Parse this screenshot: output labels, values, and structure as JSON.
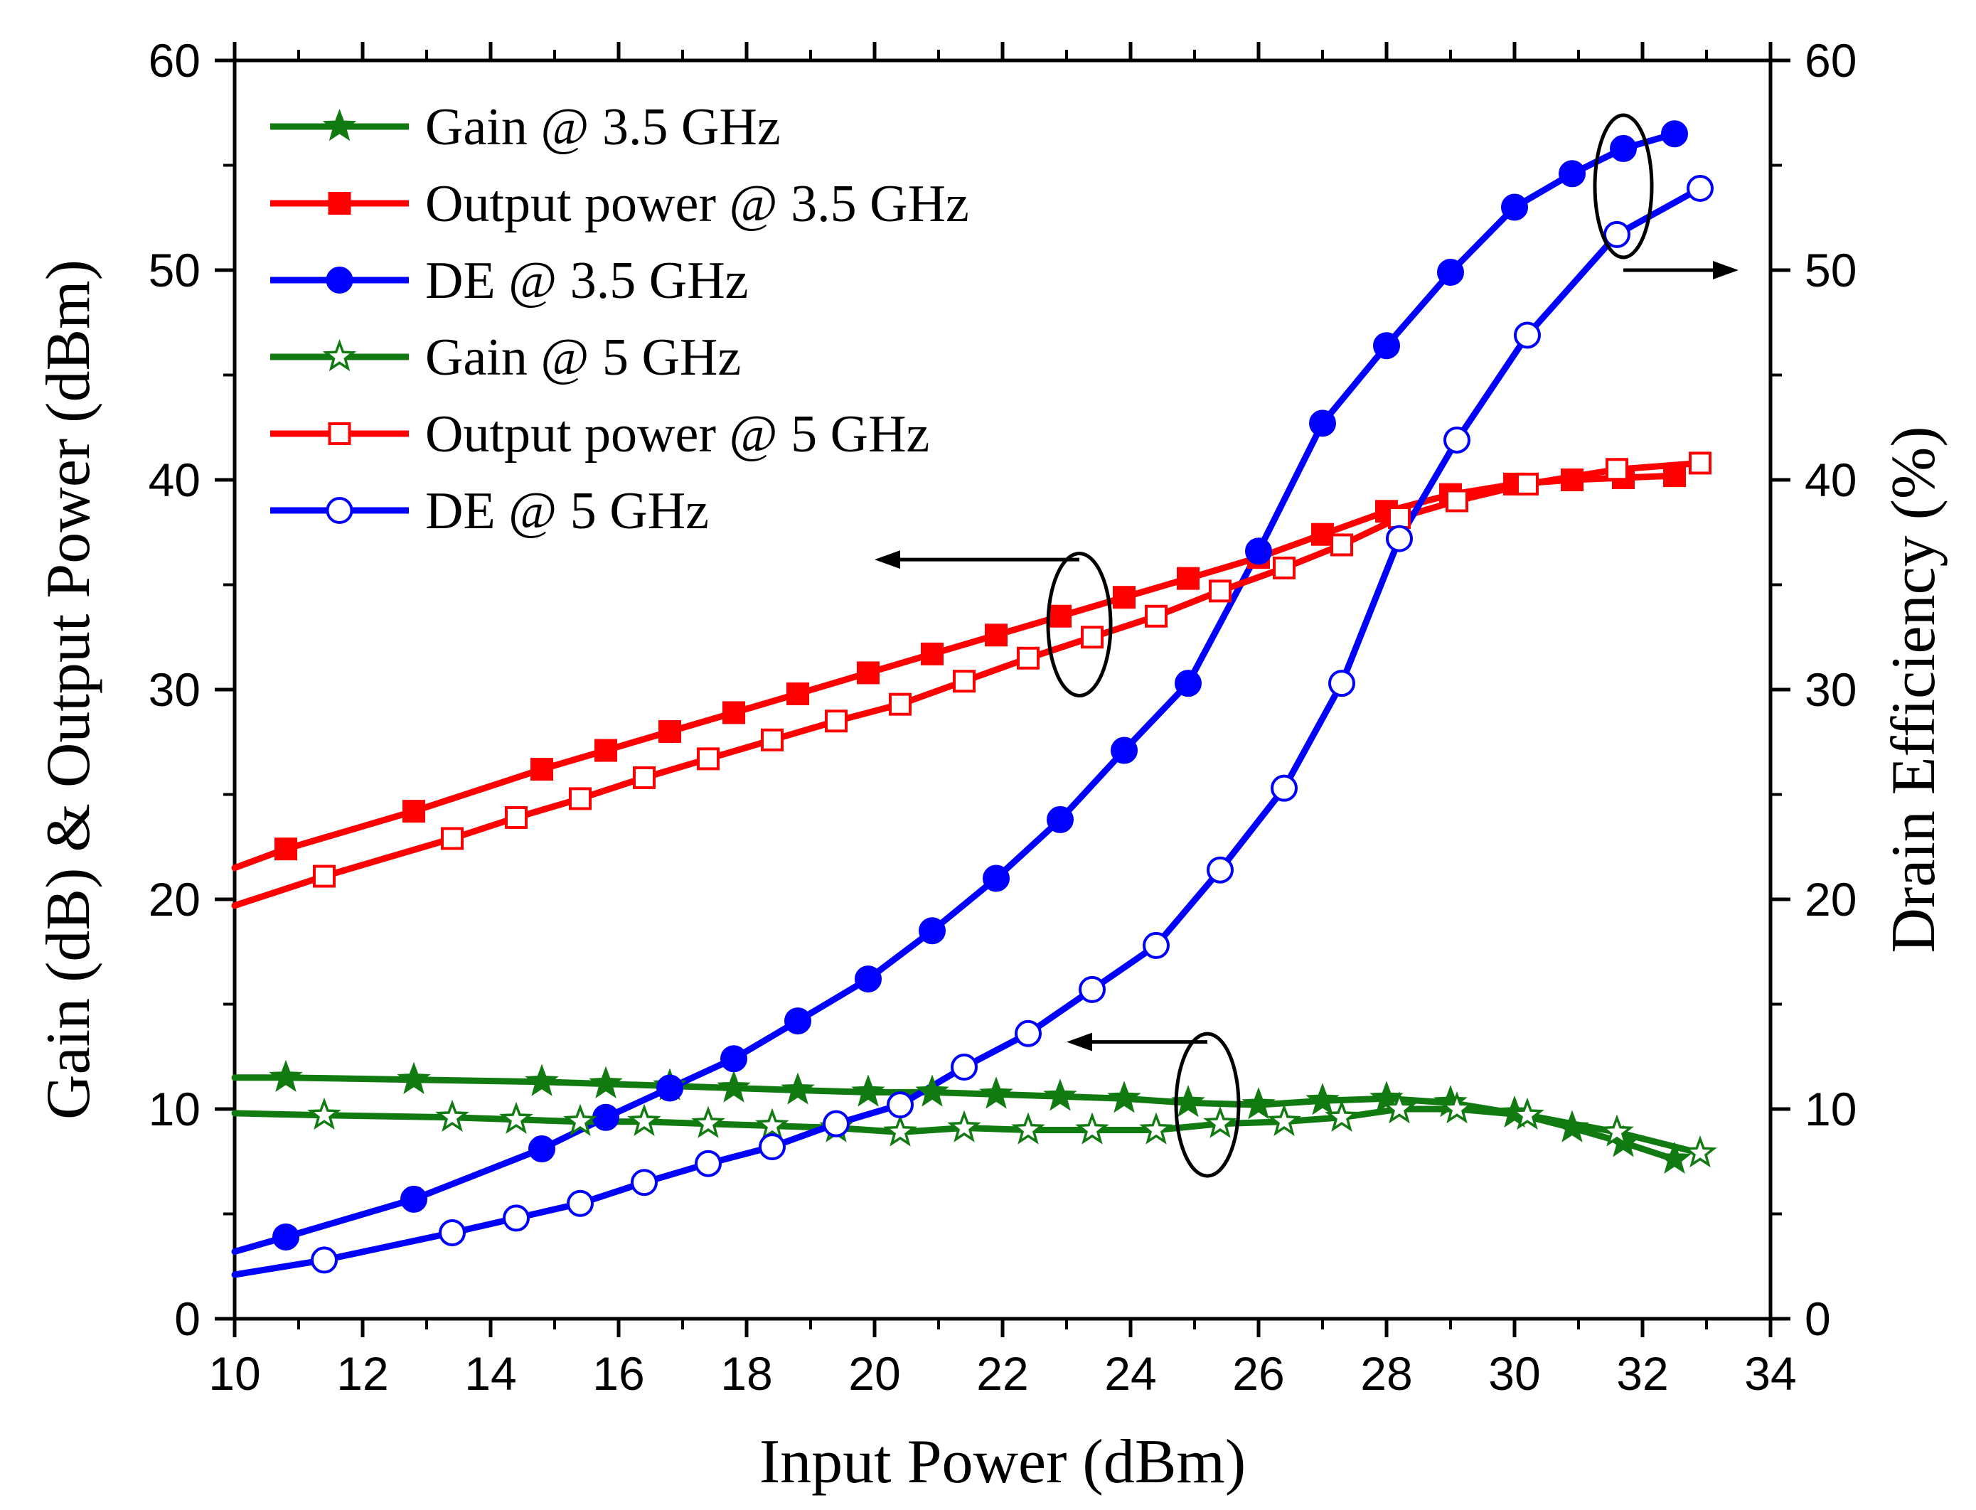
{
  "chart_data": {
    "type": "line",
    "title": "",
    "xlabel": "Input Power (dBm)",
    "ylabel_left": "Gain (dB) & Output Power (dBm)",
    "ylabel_right": "Drain Efficiency (%)",
    "xlim": [
      10,
      34
    ],
    "ylim_left": [
      0,
      60
    ],
    "ylim_right": [
      0,
      60
    ],
    "x_ticks": [
      10,
      12,
      14,
      16,
      18,
      20,
      22,
      24,
      26,
      28,
      30,
      32,
      34
    ],
    "y_ticks_left": [
      0,
      10,
      20,
      30,
      40,
      50,
      60
    ],
    "y_ticks_right": [
      0,
      10,
      20,
      30,
      40,
      50,
      60
    ],
    "grid": false,
    "legend_position": "top-left",
    "series": [
      {
        "name": "Gain @ 3.5 GHz",
        "color": "#117a11",
        "marker": "star-filled",
        "axis": "left",
        "x": [
          10,
          10.8,
          12.8,
          14.8,
          15.8,
          16.8,
          17.8,
          18.8,
          19.9,
          20.9,
          21.9,
          22.9,
          23.9,
          24.9,
          26.0,
          27.0,
          28.0,
          29.0,
          30.0,
          30.9,
          31.7,
          32.5
        ],
        "y": [
          11.5,
          11.5,
          11.4,
          11.3,
          11.2,
          11.1,
          11.0,
          10.9,
          10.8,
          10.8,
          10.7,
          10.6,
          10.5,
          10.3,
          10.2,
          10.4,
          10.5,
          10.3,
          9.8,
          9.1,
          8.4,
          7.6
        ]
      },
      {
        "name": "Output power @ 3.5 GHz",
        "color": "#ff0000",
        "marker": "square-filled",
        "axis": "left",
        "x": [
          10,
          10.8,
          12.8,
          14.8,
          15.8,
          16.8,
          17.8,
          18.8,
          19.9,
          20.9,
          21.9,
          22.9,
          23.9,
          24.9,
          26.0,
          27.0,
          28.0,
          29.0,
          30.0,
          30.9,
          31.7,
          32.5
        ],
        "y": [
          21.5,
          22.4,
          24.2,
          26.2,
          27.1,
          28.0,
          28.9,
          29.8,
          30.8,
          31.7,
          32.6,
          33.5,
          34.4,
          35.3,
          36.3,
          37.4,
          38.5,
          39.3,
          39.8,
          40.0,
          40.1,
          40.2
        ]
      },
      {
        "name": "DE @ 3.5 GHz",
        "color": "#0000ff",
        "marker": "circle-filled",
        "axis": "right",
        "x": [
          10,
          10.8,
          12.8,
          14.8,
          15.8,
          16.8,
          17.8,
          18.8,
          19.9,
          20.9,
          21.9,
          22.9,
          23.9,
          24.9,
          26.0,
          27.0,
          28.0,
          29.0,
          30.0,
          30.9,
          31.7,
          32.5
        ],
        "y": [
          3.2,
          3.9,
          5.7,
          8.1,
          9.6,
          11.0,
          12.4,
          14.2,
          16.2,
          18.5,
          21.0,
          23.8,
          27.1,
          30.3,
          36.6,
          42.7,
          46.4,
          49.9,
          53.0,
          54.6,
          55.8,
          56.5
        ]
      },
      {
        "name": "Gain @ 5 GHz",
        "color": "#117a11",
        "marker": "star-open",
        "axis": "left",
        "x": [
          10,
          11.4,
          13.4,
          14.4,
          15.4,
          16.4,
          17.4,
          18.4,
          19.4,
          20.4,
          21.4,
          22.4,
          23.4,
          24.4,
          25.4,
          26.4,
          27.3,
          28.2,
          29.1,
          30.2,
          31.6,
          32.9
        ],
        "y": [
          9.8,
          9.7,
          9.6,
          9.5,
          9.4,
          9.4,
          9.3,
          9.2,
          9.1,
          8.9,
          9.1,
          9.0,
          9.0,
          9.0,
          9.3,
          9.4,
          9.6,
          10.0,
          10.0,
          9.7,
          8.9,
          7.9
        ]
      },
      {
        "name": "Output power @ 5 GHz",
        "color": "#ff0000",
        "marker": "square-open",
        "axis": "left",
        "x": [
          10,
          11.4,
          13.4,
          14.4,
          15.4,
          16.4,
          17.4,
          18.4,
          19.4,
          20.4,
          21.4,
          22.4,
          23.4,
          24.4,
          25.4,
          26.4,
          27.3,
          28.2,
          29.1,
          30.2,
          31.6,
          32.9
        ],
        "y": [
          19.7,
          21.1,
          22.9,
          23.9,
          24.8,
          25.8,
          26.7,
          27.6,
          28.5,
          29.3,
          30.4,
          31.5,
          32.5,
          33.5,
          34.7,
          35.8,
          36.9,
          38.2,
          39.0,
          39.8,
          40.5,
          40.8
        ]
      },
      {
        "name": "DE @ 5 GHz",
        "color": "#0000ff",
        "marker": "circle-open",
        "axis": "right",
        "x": [
          10,
          11.4,
          13.4,
          14.4,
          15.4,
          16.4,
          17.4,
          18.4,
          19.4,
          20.4,
          21.4,
          22.4,
          23.4,
          24.4,
          25.4,
          26.4,
          27.3,
          28.2,
          29.1,
          30.2,
          31.6,
          32.9
        ],
        "y": [
          2.1,
          2.8,
          4.1,
          4.8,
          5.5,
          6.5,
          7.4,
          8.2,
          9.3,
          10.2,
          12.0,
          13.6,
          15.7,
          17.8,
          21.4,
          25.3,
          30.3,
          37.2,
          41.9,
          46.9,
          51.7,
          53.9
        ]
      }
    ]
  }
}
